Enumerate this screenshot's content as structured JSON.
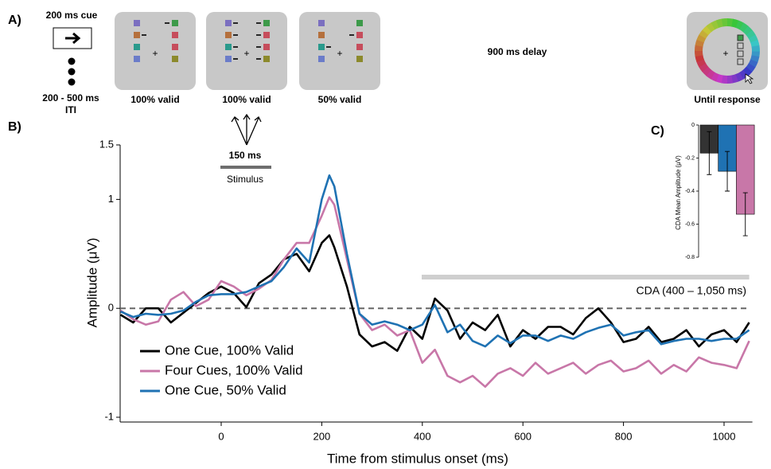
{
  "panel_labels": [
    "A)",
    "B)",
    "C)"
  ],
  "diagram": {
    "cue_label": "200 ms cue",
    "iti_label": "200 - 500 ms",
    "iti_sublabel": "ITI",
    "displays": [
      "100% valid",
      "100% valid",
      "50% valid"
    ],
    "delay_label": "900 ms delay",
    "response_label": "Until response",
    "stimulus_duration": "150 ms",
    "stimulus_label": "Stimulus"
  },
  "chart_data": [
    {
      "type": "line",
      "x_label": "Time from stimulus onset (ms)",
      "y_label": "Amplitude (μV)",
      "annotation": "CDA (400 – 1,050 ms)",
      "legend": "lower left",
      "xlim": [
        -200,
        1050
      ],
      "xticks": [
        0,
        200,
        400,
        600,
        800,
        1000
      ],
      "ylim": [
        -1,
        1.5
      ],
      "yticks": [
        -1,
        0,
        1,
        1.5
      ],
      "x": [
        -200,
        -175,
        -150,
        -125,
        -100,
        -75,
        -50,
        -25,
        0,
        25,
        50,
        75,
        100,
        125,
        150,
        175,
        200,
        215,
        225,
        250,
        275,
        300,
        325,
        350,
        375,
        400,
        425,
        450,
        475,
        500,
        525,
        550,
        575,
        600,
        625,
        650,
        675,
        700,
        725,
        750,
        775,
        800,
        825,
        850,
        875,
        900,
        925,
        950,
        975,
        1000,
        1025,
        1050
      ],
      "series": [
        {
          "name": "One Cue, 100% Valid",
          "color": "#000000",
          "values": [
            -0.06,
            -0.13,
            0,
            0,
            -0.13,
            -0.04,
            0.05,
            0.14,
            0.2,
            0.14,
            0.01,
            0.23,
            0.31,
            0.45,
            0.5,
            0.34,
            0.6,
            0.67,
            0.56,
            0.2,
            -0.24,
            -0.35,
            -0.31,
            -0.39,
            -0.17,
            -0.28,
            0.09,
            -0.02,
            -0.28,
            -0.13,
            -0.2,
            -0.06,
            -0.35,
            -0.2,
            -0.28,
            -0.17,
            -0.17,
            -0.24,
            -0.09,
            0,
            -0.13,
            -0.31,
            -0.28,
            -0.17,
            -0.31,
            -0.28,
            -0.2,
            -0.35,
            -0.24,
            -0.2,
            -0.31,
            -0.13
          ]
        },
        {
          "name": "Four Cues, 100% Valid",
          "color": "#c877a8",
          "values": [
            -0.02,
            -0.1,
            -0.15,
            -0.12,
            0.08,
            0.15,
            0.02,
            0.08,
            0.25,
            0.2,
            0.12,
            0.18,
            0.26,
            0.45,
            0.6,
            0.6,
            0.85,
            1.02,
            0.95,
            0.45,
            -0.05,
            -0.2,
            -0.15,
            -0.25,
            -0.2,
            -0.5,
            -0.38,
            -0.62,
            -0.68,
            -0.62,
            -0.72,
            -0.6,
            -0.55,
            -0.62,
            -0.5,
            -0.6,
            -0.55,
            -0.5,
            -0.6,
            -0.52,
            -0.48,
            -0.58,
            -0.55,
            -0.48,
            -0.6,
            -0.52,
            -0.58,
            -0.45,
            -0.5,
            -0.52,
            -0.55,
            -0.3
          ]
        },
        {
          "name": "One Cue, 50% Valid",
          "color": "#1f72b3",
          "values": [
            -0.03,
            -0.08,
            -0.05,
            -0.06,
            -0.05,
            -0.02,
            0.06,
            0.12,
            0.13,
            0.13,
            0.15,
            0.2,
            0.25,
            0.38,
            0.55,
            0.42,
            1.0,
            1.22,
            1.12,
            0.5,
            -0.05,
            -0.15,
            -0.12,
            -0.15,
            -0.2,
            -0.15,
            0.03,
            -0.22,
            -0.15,
            -0.3,
            -0.35,
            -0.25,
            -0.32,
            -0.25,
            -0.25,
            -0.3,
            -0.25,
            -0.28,
            -0.22,
            -0.18,
            -0.15,
            -0.25,
            -0.22,
            -0.2,
            -0.33,
            -0.3,
            -0.28,
            -0.28,
            -0.3,
            -0.28,
            -0.28,
            -0.2
          ]
        }
      ]
    },
    {
      "type": "bar",
      "y_label": "CDA Mean Amplitude (μV)",
      "categories": [
        null,
        null,
        null
      ],
      "values": [
        -0.17,
        -0.28,
        -0.54
      ],
      "errors": [
        0.13,
        0.12,
        0.13
      ],
      "colors": [
        "#333333",
        "#1f72b3",
        "#c877a8"
      ],
      "ylim": [
        -0.8,
        0
      ],
      "yticks": [
        0,
        -0.2,
        -0.4,
        -0.6,
        -0.8
      ]
    }
  ]
}
